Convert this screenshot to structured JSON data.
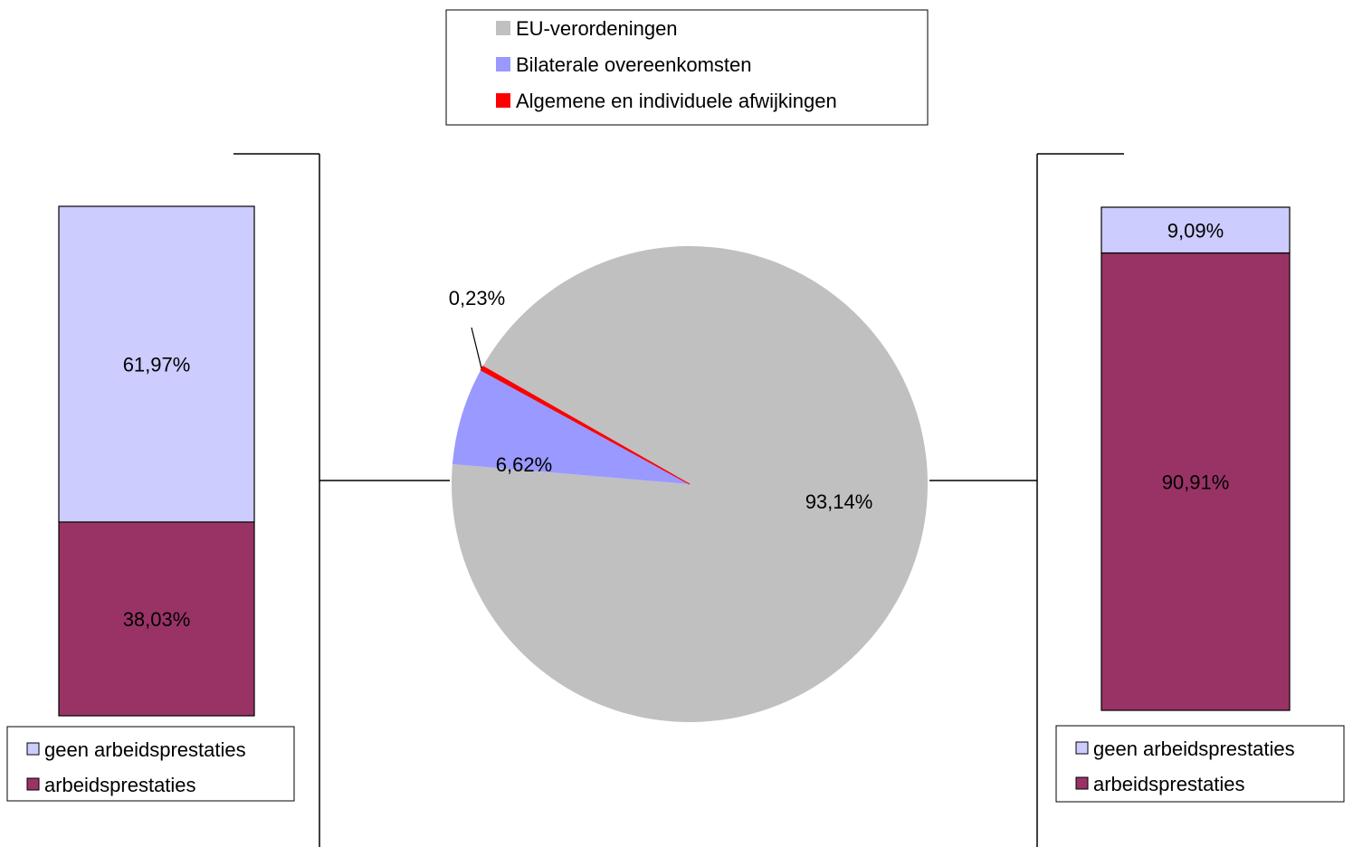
{
  "chart_data": [
    {
      "type": "pie",
      "categories": [
        "EU-verordeningen",
        "Bilaterale overeenkomsten",
        "Algemene en individuele afwijkingen"
      ],
      "values": [
        93.14,
        6.62,
        0.23
      ],
      "labels": [
        "93,14%",
        "6,62%",
        "0,23%"
      ],
      "colors": [
        "#C0C0C0",
        "#9999FF",
        "#FF0000"
      ],
      "legend": {
        "position": "top-center"
      }
    },
    {
      "type": "bar",
      "stacked": true,
      "categories": [
        ""
      ],
      "series": [
        {
          "name": "arbeidsprestaties",
          "values": [
            38.03
          ],
          "label": "38,03%",
          "color": "#993366"
        },
        {
          "name": "geen arbeidsprestaties",
          "values": [
            61.97
          ],
          "label": "61,97%",
          "color": "#CCCCFF"
        }
      ],
      "legend_items": [
        "geen arbeidsprestaties",
        "arbeidsprestaties"
      ],
      "legend": {
        "position": "bottom"
      },
      "ylim": [
        0,
        100
      ]
    },
    {
      "type": "bar",
      "stacked": true,
      "categories": [
        ""
      ],
      "series": [
        {
          "name": "arbeidsprestaties",
          "values": [
            90.91
          ],
          "label": "90,91%",
          "color": "#993366"
        },
        {
          "name": "geen arbeidsprestaties",
          "values": [
            9.09
          ],
          "label": "9,09%",
          "color": "#CCCCFF"
        }
      ],
      "legend_items": [
        "geen arbeidsprestaties",
        "arbeidsprestaties"
      ],
      "legend": {
        "position": "bottom"
      },
      "ylim": [
        0,
        100
      ]
    }
  ]
}
